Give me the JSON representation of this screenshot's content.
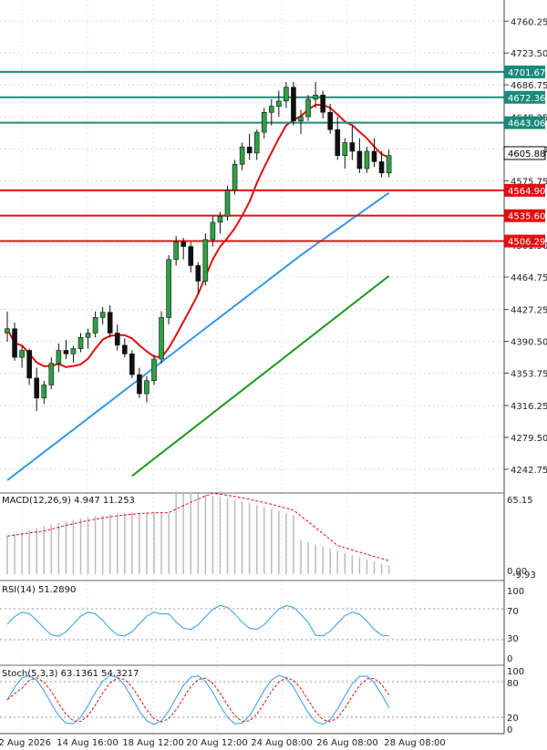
{
  "chart_data": {
    "type": "candlestick",
    "price_axis": {
      "ylim": [
        4230,
        4770
      ],
      "ticks": [
        "4760.25",
        "4723.50",
        "4686.75",
        "4649.25",
        "4612.50",
        "4575.75",
        "4501.50",
        "4464.75",
        "4427.25",
        "4390.50",
        "4353.75",
        "4316.25",
        "4279.50",
        "4242.75"
      ]
    },
    "x_ticks": [
      "12 Aug 2026",
      "14 Aug 16:00",
      "18 Aug 12:00",
      "20 Aug 12:00",
      "24 Aug 08:00",
      "26 Aug 08:00",
      "28 Aug 08:00"
    ],
    "levels": {
      "resistance": [
        {
          "value": "4701.67",
          "color": "#1a8a7a"
        },
        {
          "value": "4672.36",
          "color": "#1a8a7a"
        },
        {
          "value": "4643.06",
          "color": "#1a8a7a"
        }
      ],
      "support": [
        {
          "value": "4564.90",
          "color": "#e01010"
        },
        {
          "value": "4535.60",
          "color": "#e01010"
        },
        {
          "value": "4506.29",
          "color": "#e01010"
        }
      ]
    },
    "current_price": "4605.88",
    "candles": [
      [
        4400,
        4425,
        4390,
        4405
      ],
      [
        4405,
        4412,
        4368,
        4372
      ],
      [
        4372,
        4385,
        4360,
        4380
      ],
      [
        4380,
        4382,
        4340,
        4348
      ],
      [
        4348,
        4360,
        4310,
        4325
      ],
      [
        4325,
        4345,
        4318,
        4340
      ],
      [
        4340,
        4372,
        4335,
        4365
      ],
      [
        4365,
        4388,
        4355,
        4380
      ],
      [
        4380,
        4392,
        4370,
        4376
      ],
      [
        4376,
        4385,
        4366,
        4382
      ],
      [
        4382,
        4400,
        4378,
        4395
      ],
      [
        4395,
        4405,
        4382,
        4400
      ],
      [
        4400,
        4425,
        4395,
        4418
      ],
      [
        4418,
        4430,
        4410,
        4424
      ],
      [
        4424,
        4432,
        4395,
        4400
      ],
      [
        4400,
        4410,
        4380,
        4386
      ],
      [
        4386,
        4394,
        4372,
        4376
      ],
      [
        4376,
        4380,
        4348,
        4352
      ],
      [
        4352,
        4360,
        4325,
        4330
      ],
      [
        4330,
        4350,
        4320,
        4345
      ],
      [
        4345,
        4375,
        4340,
        4370
      ],
      [
        4370,
        4425,
        4365,
        4418
      ],
      [
        4418,
        4490,
        4410,
        4485
      ],
      [
        4485,
        4512,
        4478,
        4505
      ],
      [
        4505,
        4510,
        4485,
        4500
      ],
      [
        4500,
        4505,
        4470,
        4478
      ],
      [
        4478,
        4482,
        4445,
        4460
      ],
      [
        4460,
        4515,
        4455,
        4508
      ],
      [
        4508,
        4535,
        4500,
        4528
      ],
      [
        4528,
        4540,
        4515,
        4535
      ],
      [
        4535,
        4570,
        4530,
        4565
      ],
      [
        4565,
        4600,
        4560,
        4595
      ],
      [
        4595,
        4620,
        4588,
        4615
      ],
      [
        4615,
        4630,
        4600,
        4608
      ],
      [
        4608,
        4635,
        4600,
        4632
      ],
      [
        4632,
        4660,
        4625,
        4655
      ],
      [
        4655,
        4670,
        4640,
        4662
      ],
      [
        4662,
        4680,
        4650,
        4668
      ],
      [
        4668,
        4690,
        4660,
        4684
      ],
      [
        4684,
        4690,
        4640,
        4645
      ],
      [
        4645,
        4658,
        4630,
        4650
      ],
      [
        4650,
        4675,
        4645,
        4670
      ],
      [
        4670,
        4690,
        4660,
        4675
      ],
      [
        4675,
        4680,
        4648,
        4655
      ],
      [
        4655,
        4665,
        4630,
        4635
      ],
      [
        4635,
        4650,
        4600,
        4605
      ],
      [
        4605,
        4625,
        4590,
        4620
      ],
      [
        4620,
        4640,
        4600,
        4610
      ],
      [
        4610,
        4625,
        4585,
        4590
      ],
      [
        4590,
        4615,
        4585,
        4610
      ],
      [
        4610,
        4625,
        4592,
        4598
      ],
      [
        4598,
        4610,
        4580,
        4585
      ],
      [
        4585,
        4612,
        4580,
        4605
      ]
    ],
    "indicators": {
      "macd": {
        "label": "MACD(12,26,9) 4.947 11.253",
        "axis_top": "65.15",
        "axis_bottom": "0.00",
        "axis_bottom2": "-9.93"
      },
      "rsi": {
        "label": "RSI(14) 51.2890",
        "ticks": [
          "100",
          "70",
          "30",
          "0"
        ]
      },
      "stoch": {
        "label": "Stoch(5,3,3) 63.1361 54.3217",
        "ticks": [
          "100",
          "80",
          "20",
          "0"
        ]
      }
    }
  }
}
